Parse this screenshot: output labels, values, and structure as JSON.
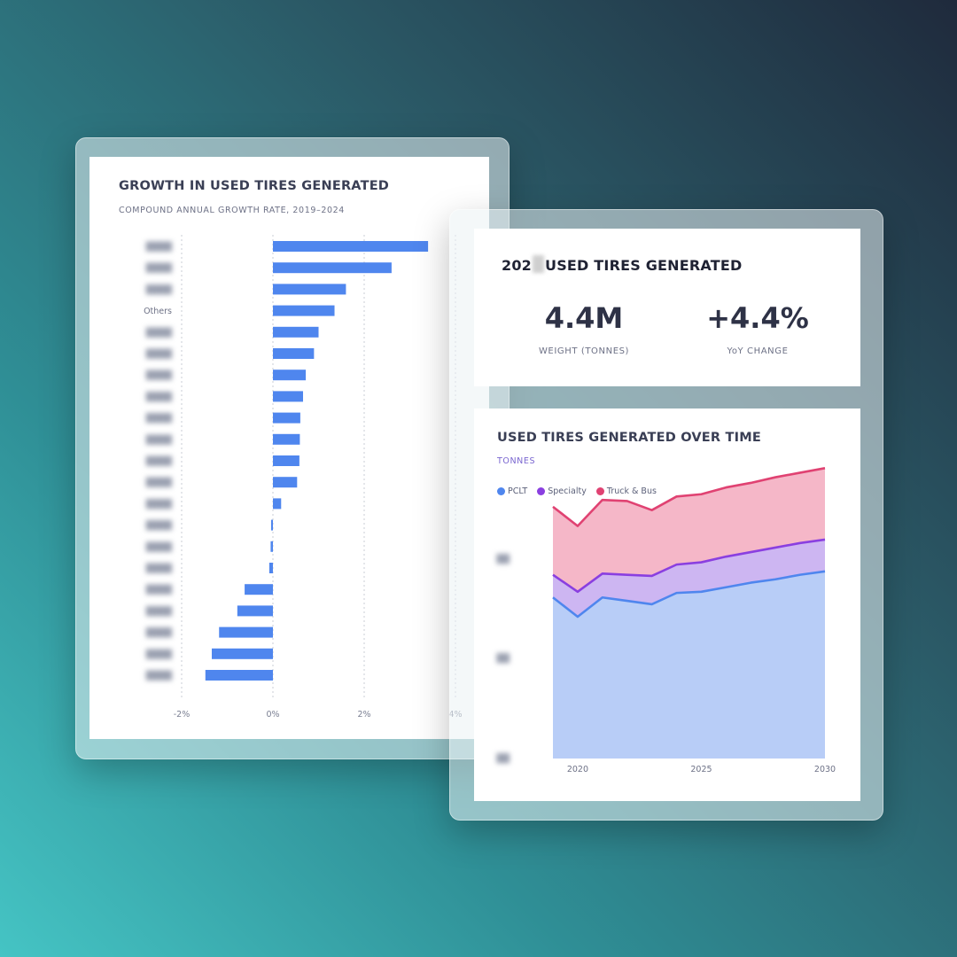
{
  "left_card": {
    "title": "GROWTH IN USED TIRES GENERATED",
    "subtitle": "COMPOUND ANNUAL GROWTH RATE, 2019–2024"
  },
  "kpi_card": {
    "title_prefix": "202",
    "title_suffix": "USED TIRES GENERATED",
    "weight_value": "4.4M",
    "weight_label": "WEIGHT (TONNES)",
    "yoy_value": "+4.4%",
    "yoy_label": "YoY CHANGE"
  },
  "area_card": {
    "title": "USED TIRES GENERATED OVER TIME",
    "subtitle": "TONNES"
  },
  "colors": {
    "bar": "#4f86ee",
    "pclt": "#4f86ee",
    "specialty": "#8a3fe0",
    "truck_bus": "#e04272"
  },
  "chart_data": [
    {
      "type": "bar",
      "orientation": "horizontal",
      "categories": [
        "Redacted",
        "Redacted",
        "Redacted",
        "Others",
        "Redacted",
        "Redacted",
        "Redacted",
        "Redacted",
        "Redacted",
        "Redacted",
        "Redacted",
        "Redacted",
        "Redacted",
        "Redacted",
        "Redacted",
        "Redacted",
        "Redacted",
        "Redacted",
        "Redacted",
        "Redacted",
        "Redacted"
      ],
      "values": [
        3.4,
        2.6,
        1.6,
        1.35,
        1.0,
        0.9,
        0.72,
        0.66,
        0.6,
        0.59,
        0.58,
        0.53,
        0.18,
        -0.04,
        -0.05,
        -0.08,
        -0.62,
        -0.78,
        -1.18,
        -1.34,
        -1.48
      ],
      "xlim": [
        -2,
        4
      ],
      "xticks": [
        "-2%",
        "0%",
        "2%",
        "4%"
      ],
      "legend": "none"
    },
    {
      "type": "area",
      "stacked": true,
      "x": [
        2019,
        2020,
        2021,
        2022,
        2023,
        2024,
        2025,
        2026,
        2027,
        2028,
        2029,
        2030
      ],
      "xticks": [
        "2020",
        "2025",
        "2030"
      ],
      "legend": "top-left",
      "series": [
        {
          "name": "PCLT",
          "values": [
            142,
            125,
            142,
            139,
            136,
            146,
            147,
            151,
            155,
            158,
            162,
            165
          ]
        },
        {
          "name": "Specialty",
          "values": [
            20,
            22,
            21,
            23,
            25,
            25,
            26,
            27,
            27,
            28,
            28,
            28
          ]
        },
        {
          "name": "Truck & Bus",
          "values": [
            60,
            58,
            65,
            65,
            58,
            60,
            60,
            61,
            61,
            62,
            62,
            63
          ]
        }
      ]
    }
  ]
}
